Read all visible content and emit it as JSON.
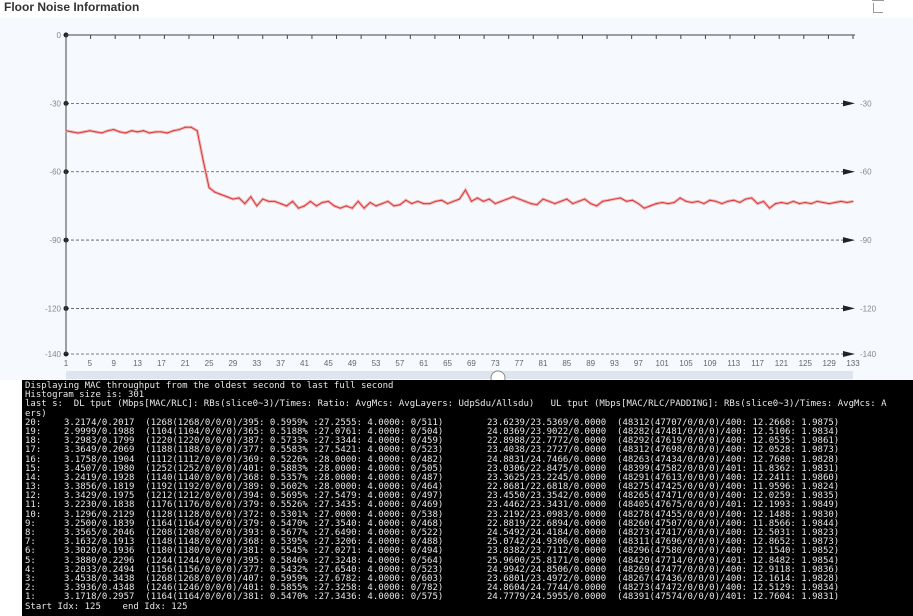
{
  "panel": {
    "title": "Floor Noise Information",
    "expand_icon": "expand-icon"
  },
  "chart_data": {
    "type": "line",
    "title": "Floor Noise Information",
    "xlabel": "",
    "ylabel": "",
    "x": [
      1,
      2,
      3,
      4,
      5,
      6,
      7,
      8,
      9,
      10,
      11,
      12,
      13,
      14,
      15,
      16,
      17,
      18,
      19,
      20,
      21,
      22,
      23,
      24,
      25,
      26,
      27,
      28,
      29,
      30,
      31,
      32,
      33,
      34,
      35,
      36,
      37,
      38,
      39,
      40,
      41,
      42,
      43,
      44,
      45,
      46,
      47,
      48,
      49,
      50,
      51,
      52,
      53,
      54,
      55,
      56,
      57,
      58,
      59,
      60,
      61,
      62,
      63,
      64,
      65,
      66,
      67,
      68,
      69,
      70,
      71,
      72,
      73,
      74,
      75,
      76,
      77,
      78,
      79,
      80,
      81,
      82,
      83,
      84,
      85,
      86,
      87,
      88,
      89,
      90,
      91,
      92,
      93,
      94,
      95,
      96,
      97,
      98,
      99,
      100,
      101,
      102,
      103,
      104,
      105,
      106,
      107,
      108,
      109,
      110,
      111,
      112,
      113,
      114,
      115,
      116,
      117,
      118,
      119,
      120,
      121,
      122,
      123,
      124,
      125,
      126,
      127,
      128,
      129,
      130,
      131,
      132,
      133
    ],
    "series": [
      {
        "values": [
          -42,
          -42.5,
          -43,
          -42.5,
          -42,
          -42.5,
          -43,
          -42,
          -41.5,
          -42.5,
          -43,
          -42,
          -42.5,
          -42,
          -43,
          -42.5,
          -42.5,
          -43,
          -42,
          -41.5,
          -40.5,
          -40.5,
          -42,
          -55,
          -67,
          -69,
          -70,
          -71,
          -72,
          -71.5,
          -74,
          -71,
          -75,
          -72,
          -73,
          -73,
          -74,
          -75,
          -73,
          -76,
          -75,
          -73,
          -75,
          -73.5,
          -73,
          -75,
          -76,
          -75,
          -76,
          -73,
          -76,
          -73.5,
          -75,
          -74,
          -73,
          -75,
          -74.5,
          -72.5,
          -74,
          -73,
          -74,
          -74,
          -73,
          -72.5,
          -74,
          -73,
          -72,
          -68,
          -73,
          -71.5,
          -73,
          -72,
          -74,
          -73,
          -72,
          -71,
          -72,
          -73,
          -74,
          -74.5,
          -72,
          -73,
          -74,
          -73,
          -72,
          -74,
          -73,
          -72,
          -74,
          -75,
          -73,
          -72.5,
          -72,
          -71.5,
          -73,
          -72.5,
          -74,
          -76,
          -75,
          -74,
          -73.5,
          -74,
          -73.5,
          -71.5,
          -73,
          -73.5,
          -73,
          -74,
          -72.5,
          -73,
          -74,
          -73,
          -72.5,
          -73.5,
          -72,
          -71.5,
          -74,
          -73,
          -76,
          -74,
          -73.5,
          -74,
          -73,
          -74,
          -73.5,
          -74,
          -73,
          -73.5,
          -74,
          -73.5,
          -73,
          -73.5,
          -73
        ],
        "color": "#d9383a"
      }
    ],
    "x_tick_labels": [
      "1",
      "5",
      "9",
      "13",
      "17",
      "21",
      "25",
      "29",
      "33",
      "37",
      "41",
      "45",
      "49",
      "53",
      "57",
      "61",
      "65",
      "69",
      "73",
      "77",
      "81",
      "85",
      "89",
      "93",
      "97",
      "101",
      "105",
      "109",
      "113",
      "117",
      "121",
      "125",
      "129",
      "133"
    ],
    "y_ticks": [
      0,
      -30,
      -60,
      -90,
      -120,
      -140
    ],
    "y_ticks_right": [
      -30,
      -60,
      -90,
      -120,
      -140
    ],
    "ylim": [
      -140,
      0
    ],
    "xlim": [
      1,
      133
    ],
    "grid": "dashed horizontal",
    "legend": "none"
  },
  "terminal": {
    "intro": [
      "Displaying MAC throughput from the oldest second to last full second",
      "Histogram size is: 301",
      "last s:  DL tput (Mbps[MAC/RLC]: RBs(slice0~3)/Times: Ratio: AvgMcs: AvgLayers: UdpSdu/Allsdu)   UL tput (Mbps[MAC/RLC/PADDING]: RBs(slice0~3)/Times: AvgMcs: A",
      "ers)"
    ],
    "rows": [
      {
        "label": "20:",
        "dl": "3.2174/0.2017  (1268(1268/0/0/0)/395: 0.5959% :27.2555: 4.0000: 0/511)",
        "ul": "23.6239/23.5369/0.0000  (48312(47707/0/0/0)/400: 12.2668: 1.9875)"
      },
      {
        "label": "19:",
        "dl": "2.9999/0.1988  (1104(1104/0/0/0)/365: 0.5188% :27.0761: 4.0000: 0/504)",
        "ul": "24.0369/23.9022/0.0000  (48282(47481/0/0/0)/400: 12.5106: 1.9834)"
      },
      {
        "label": "18:",
        "dl": "3.2983/0.1799  (1220(1220/0/0/0)/387: 0.5733% :27.3344: 4.0000: 0/459)",
        "ul": "22.8988/22.7772/0.0000  (48292(47619/0/0/0)/400: 12.0535: 1.9861)"
      },
      {
        "label": "17:",
        "dl": "3.3649/0.2069  (1188(1188/0/0/0)/377: 0.5583% :27.5421: 4.0000: 0/523)",
        "ul": "23.4038/23.2727/0.0000  (48312(47698/0/0/0)/400: 12.0528: 1.9873)"
      },
      {
        "label": "16:",
        "dl": "3.1758/0.1904  (1112(1112/0/0/0)/369: 0.5226% :28.0000: 4.0000: 0/482)",
        "ul": "24.8831/24.7466/0.0000  (48263(47434/0/0/0)/400: 12.7680: 1.9828)"
      },
      {
        "label": "15:",
        "dl": "3.4507/0.1980  (1252(1252/0/0/0)/401: 0.5883% :28.0000: 4.0000: 0/505)",
        "ul": "23.0306/22.8475/0.0000  (48399(47582/0/0/0)/401: 11.8362: 1.9831)"
      },
      {
        "label": "14:",
        "dl": "3.2419/0.1928  (1140(1140/0/0/0)/368: 0.5357% :28.0000: 4.0000: 0/487)",
        "ul": "23.3625/23.2245/0.0000  (48291(47613/0/0/0)/400: 12.2411: 1.9860)"
      },
      {
        "label": "13:",
        "dl": "3.3856/0.1819  (1192(1192/0/0/0)/389: 0.5602% :28.0000: 4.0000: 0/464)",
        "ul": "22.8681/22.6818/0.0000  (48275(47425/0/0/0)/400: 11.9596: 1.9824)"
      },
      {
        "label": "12:",
        "dl": "3.3429/0.1975  (1212(1212/0/0/0)/394: 0.5695% :27.5479: 4.0000: 0/497)",
        "ul": "23.4550/23.3542/0.0000  (48265(47471/0/0/0)/400: 12.0259: 1.9835)"
      },
      {
        "label": "11:",
        "dl": "3.2230/0.1838  (1176(1176/0/0/0)/379: 0.5526% :27.3435: 4.0000: 0/469)",
        "ul": "23.4462/23.3431/0.0000  (48405(47675/0/0/0)/401: 12.1993: 1.9849)"
      },
      {
        "label": "10:",
        "dl": "3.1296/0.2129  (1128(1128/0/0/0)/372: 0.5301% :27.0000: 4.0000: 0/538)",
        "ul": "23.2192/23.0983/0.0000  (48278(47455/0/0/0)/400: 12.1488: 1.9830)"
      },
      {
        "label": "9:",
        "dl": "3.2500/0.1839  (1164(1164/0/0/0)/379: 0.5470% :27.3540: 4.0000: 0/468)",
        "ul": "22.8819/22.6894/0.0000  (48260(47507/0/0/0)/400: 11.8566: 1.9844)"
      },
      {
        "label": "8:",
        "dl": "3.3565/0.2046  (1208(1208/0/0/0)/393: 0.5677% :27.6490: 4.0000: 0/522)",
        "ul": "24.5492/24.4184/0.0000  (48273(47417/0/0/0)/400: 12.5031: 1.9823)"
      },
      {
        "label": "7:",
        "dl": "3.1632/0.1913  (1148(1148/0/0/0)/368: 0.5395% :27.3206: 4.0000: 0/488)",
        "ul": "25.0742/24.9306/0.0000  (48311(47696/0/0/0)/400: 12.8652: 1.9873)"
      },
      {
        "label": "6:",
        "dl": "3.3020/0.1936  (1180(1180/0/0/0)/381: 0.5545% :27.0271: 4.0000: 0/494)",
        "ul": "23.8382/23.7112/0.0000  (48296(47580/0/0/0)/400: 12.1540: 1.9852)"
      },
      {
        "label": "5:",
        "dl": "3.3880/0.2296  (1244(1244/0/0/0)/395: 0.5846% :27.3248: 4.0000: 0/564)",
        "ul": "25.9600/25.8171/0.0000  (48420(47714/0/0/0)/401: 12.8482: 1.9854)"
      },
      {
        "label": "4:",
        "dl": "3.2033/0.2494  (1156(1156/0/0/0)/377: 0.5432% :27.6540: 4.0000: 0/523)",
        "ul": "24.9942/24.8506/0.0000  (48269(47477/0/0/0)/400: 12.9118: 1.9836)"
      },
      {
        "label": "3:",
        "dl": "3.4538/0.3438  (1268(1268/0/0/0)/407: 0.5959% :27.6782: 4.0000: 0/603)",
        "ul": "23.6801/23.4972/0.0000  (48267(47436/0/0/0)/400: 12.1614: 1.9828)"
      },
      {
        "label": "2:",
        "dl": "3.3936/0.4348  (1246(1246/0/0/0)/401: 0.5855% :27.3258: 4.0000: 0/782)",
        "ul": "24.8604/24.7744/0.0000  (48273(47472/0/0/0)/400: 12.5129: 1.9834)"
      },
      {
        "label": "1:",
        "dl": "3.1718/0.2957  (1164(1164/0/0/0)/381: 0.5470% :27.3436: 4.0000: 0/575)",
        "ul": "24.7779/24.5955/0.0000  (48391(47574/0/0/0)/401: 12.7604: 1.9831)"
      }
    ],
    "footer": "Start Idx: 125    end Idx: 125"
  }
}
